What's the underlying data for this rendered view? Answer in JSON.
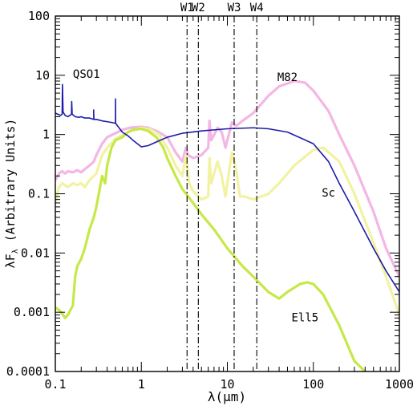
{
  "chart_data": {
    "type": "line",
    "xlabel": "λ(μm)",
    "ylabel": "λF_λ (Arbitrary Units)",
    "ylabel_main": "λF",
    "ylabel_sub": "λ",
    "ylabel_rest": " (Arbitrary Units)",
    "x_scale": "log",
    "y_scale": "log",
    "xlim": [
      0.1,
      1000
    ],
    "ylim": [
      0.0001,
      100
    ],
    "grid": false,
    "legend": "none (series labeled directly on plot)",
    "x_ticks": [
      {
        "value": 0.1,
        "label": "0.1"
      },
      {
        "value": 1,
        "label": "1"
      },
      {
        "value": 10,
        "label": "10"
      },
      {
        "value": 100,
        "label": "100"
      },
      {
        "value": 1000,
        "label": "1000"
      }
    ],
    "y_ticks": [
      {
        "value": 100,
        "label": "100"
      },
      {
        "value": 10,
        "label": "10"
      },
      {
        "value": 1,
        "label": "1"
      },
      {
        "value": 0.1,
        "label": "0.1"
      },
      {
        "value": 0.01,
        "label": "0.01"
      },
      {
        "value": 0.001,
        "label": "0.001"
      },
      {
        "value": 0.0001,
        "label": "0.0001"
      }
    ],
    "bands": [
      {
        "name": "W1",
        "x": 3.4
      },
      {
        "name": "W2",
        "x": 4.6
      },
      {
        "name": "W3",
        "x": 12
      },
      {
        "name": "W4",
        "x": 22
      }
    ],
    "series": [
      {
        "name": "M82",
        "color": "#f4b6e4",
        "label_at": [
          50,
          8
        ],
        "points": [
          [
            0.1,
            0.17
          ],
          [
            0.11,
            0.22
          ],
          [
            0.12,
            0.24
          ],
          [
            0.13,
            0.22
          ],
          [
            0.14,
            0.24
          ],
          [
            0.16,
            0.23
          ],
          [
            0.18,
            0.25
          ],
          [
            0.2,
            0.23
          ],
          [
            0.22,
            0.26
          ],
          [
            0.25,
            0.3
          ],
          [
            0.28,
            0.35
          ],
          [
            0.3,
            0.45
          ],
          [
            0.35,
            0.7
          ],
          [
            0.4,
            0.9
          ],
          [
            0.5,
            1.05
          ],
          [
            0.6,
            1.2
          ],
          [
            0.7,
            1.28
          ],
          [
            0.8,
            1.32
          ],
          [
            1.0,
            1.35
          ],
          [
            1.2,
            1.3
          ],
          [
            1.5,
            1.15
          ],
          [
            2.0,
            0.9
          ],
          [
            2.5,
            0.5
          ],
          [
            3.0,
            0.35
          ],
          [
            3.3,
            0.6
          ],
          [
            3.5,
            0.45
          ],
          [
            4.0,
            0.4
          ],
          [
            5.0,
            0.45
          ],
          [
            6.0,
            0.6
          ],
          [
            6.2,
            1.7
          ],
          [
            6.5,
            0.8
          ],
          [
            7.7,
            1.3
          ],
          [
            8.6,
            1.1
          ],
          [
            9.5,
            0.6
          ],
          [
            11.3,
            1.6
          ],
          [
            12.7,
            1.4
          ],
          [
            15,
            1.7
          ],
          [
            20,
            2.3
          ],
          [
            30,
            4.5
          ],
          [
            40,
            6.5
          ],
          [
            60,
            8.0
          ],
          [
            80,
            7.5
          ],
          [
            100,
            5.5
          ],
          [
            150,
            2.5
          ],
          [
            200,
            1.0
          ],
          [
            300,
            0.3
          ],
          [
            500,
            0.05
          ],
          [
            700,
            0.012
          ],
          [
            1000,
            0.004
          ]
        ]
      },
      {
        "name": "Sc",
        "color": "#f2f2a2",
        "label_at": [
          150,
          0.09
        ],
        "points": [
          [
            0.1,
            0.07
          ],
          [
            0.11,
            0.13
          ],
          [
            0.12,
            0.15
          ],
          [
            0.14,
            0.13
          ],
          [
            0.16,
            0.15
          ],
          [
            0.18,
            0.14
          ],
          [
            0.2,
            0.15
          ],
          [
            0.22,
            0.13
          ],
          [
            0.25,
            0.17
          ],
          [
            0.3,
            0.22
          ],
          [
            0.35,
            0.45
          ],
          [
            0.4,
            0.6
          ],
          [
            0.5,
            0.85
          ],
          [
            0.7,
            1.1
          ],
          [
            1.0,
            1.3
          ],
          [
            1.3,
            1.2
          ],
          [
            1.6,
            1.0
          ],
          [
            2.0,
            0.6
          ],
          [
            2.5,
            0.3
          ],
          [
            3.0,
            0.2
          ],
          [
            3.3,
            0.45
          ],
          [
            3.6,
            0.15
          ],
          [
            4.0,
            0.11
          ],
          [
            5.0,
            0.08
          ],
          [
            6.0,
            0.09
          ],
          [
            6.2,
            0.4
          ],
          [
            6.5,
            0.15
          ],
          [
            7.7,
            0.35
          ],
          [
            8.6,
            0.2
          ],
          [
            9.5,
            0.09
          ],
          [
            11.3,
            0.5
          ],
          [
            12.7,
            0.25
          ],
          [
            14,
            0.09
          ],
          [
            16,
            0.09
          ],
          [
            20,
            0.08
          ],
          [
            30,
            0.1
          ],
          [
            40,
            0.15
          ],
          [
            60,
            0.3
          ],
          [
            100,
            0.55
          ],
          [
            130,
            0.6
          ],
          [
            200,
            0.35
          ],
          [
            300,
            0.1
          ],
          [
            500,
            0.015
          ],
          [
            700,
            0.004
          ],
          [
            1000,
            0.0009
          ]
        ]
      },
      {
        "name": "Ell5",
        "color": "#c6e848",
        "label_at": [
          80,
          0.0007
        ],
        "points": [
          [
            0.1,
            0.0012
          ],
          [
            0.11,
            0.0011
          ],
          [
            0.12,
            0.00095
          ],
          [
            0.13,
            0.0008
          ],
          [
            0.14,
            0.0009
          ],
          [
            0.15,
            0.0011
          ],
          [
            0.16,
            0.0013
          ],
          [
            0.17,
            0.004
          ],
          [
            0.18,
            0.006
          ],
          [
            0.2,
            0.008
          ],
          [
            0.22,
            0.012
          ],
          [
            0.25,
            0.025
          ],
          [
            0.28,
            0.04
          ],
          [
            0.3,
            0.06
          ],
          [
            0.32,
            0.1
          ],
          [
            0.35,
            0.2
          ],
          [
            0.38,
            0.15
          ],
          [
            0.4,
            0.3
          ],
          [
            0.45,
            0.6
          ],
          [
            0.5,
            0.8
          ],
          [
            0.6,
            0.9
          ],
          [
            0.7,
            1.1
          ],
          [
            0.8,
            1.2
          ],
          [
            1.0,
            1.25
          ],
          [
            1.2,
            1.15
          ],
          [
            1.5,
            0.9
          ],
          [
            1.8,
            0.6
          ],
          [
            2.0,
            0.4
          ],
          [
            2.5,
            0.2
          ],
          [
            3.0,
            0.12
          ],
          [
            4.0,
            0.07
          ],
          [
            5.0,
            0.045
          ],
          [
            7.0,
            0.025
          ],
          [
            10,
            0.012
          ],
          [
            15,
            0.006
          ],
          [
            20,
            0.004
          ],
          [
            30,
            0.0022
          ],
          [
            40,
            0.0017
          ],
          [
            50,
            0.0022
          ],
          [
            70,
            0.003
          ],
          [
            85,
            0.0032
          ],
          [
            100,
            0.003
          ],
          [
            130,
            0.002
          ],
          [
            200,
            0.0006
          ],
          [
            300,
            0.00015
          ],
          [
            400,
            0.0001
          ]
        ]
      },
      {
        "name": "QSO1",
        "color": "#1c1ca8",
        "label_at": [
          0.23,
          9
        ],
        "points": [
          [
            0.1,
            2.3
          ],
          [
            0.115,
            2.1
          ],
          [
            0.12,
            2.2
          ],
          [
            0.121,
            7.0
          ],
          [
            0.123,
            2.4
          ],
          [
            0.13,
            2.1
          ],
          [
            0.14,
            2.0
          ],
          [
            0.154,
            2.2
          ],
          [
            0.155,
            3.6
          ],
          [
            0.157,
            2.2
          ],
          [
            0.17,
            2.0
          ],
          [
            0.19,
            1.95
          ],
          [
            0.2,
            2.0
          ],
          [
            0.22,
            1.9
          ],
          [
            0.25,
            1.9
          ],
          [
            0.28,
            1.8
          ],
          [
            0.279,
            2.6
          ],
          [
            0.281,
            1.8
          ],
          [
            0.3,
            1.8
          ],
          [
            0.35,
            1.7
          ],
          [
            0.4,
            1.65
          ],
          [
            0.45,
            1.6
          ],
          [
            0.5,
            1.55
          ],
          [
            0.5007,
            4.0
          ],
          [
            0.502,
            1.55
          ],
          [
            0.55,
            1.3
          ],
          [
            0.6,
            1.1
          ],
          [
            0.7,
            0.95
          ],
          [
            0.8,
            0.8
          ],
          [
            1.0,
            0.62
          ],
          [
            1.2,
            0.65
          ],
          [
            1.5,
            0.75
          ],
          [
            2.0,
            0.9
          ],
          [
            3.0,
            1.05
          ],
          [
            5.0,
            1.15
          ],
          [
            10,
            1.25
          ],
          [
            20,
            1.3
          ],
          [
            30,
            1.25
          ],
          [
            50,
            1.1
          ],
          [
            100,
            0.7
          ],
          [
            150,
            0.35
          ],
          [
            200,
            0.15
          ],
          [
            300,
            0.05
          ],
          [
            500,
            0.012
          ],
          [
            700,
            0.005
          ],
          [
            1000,
            0.0022
          ]
        ]
      }
    ]
  }
}
